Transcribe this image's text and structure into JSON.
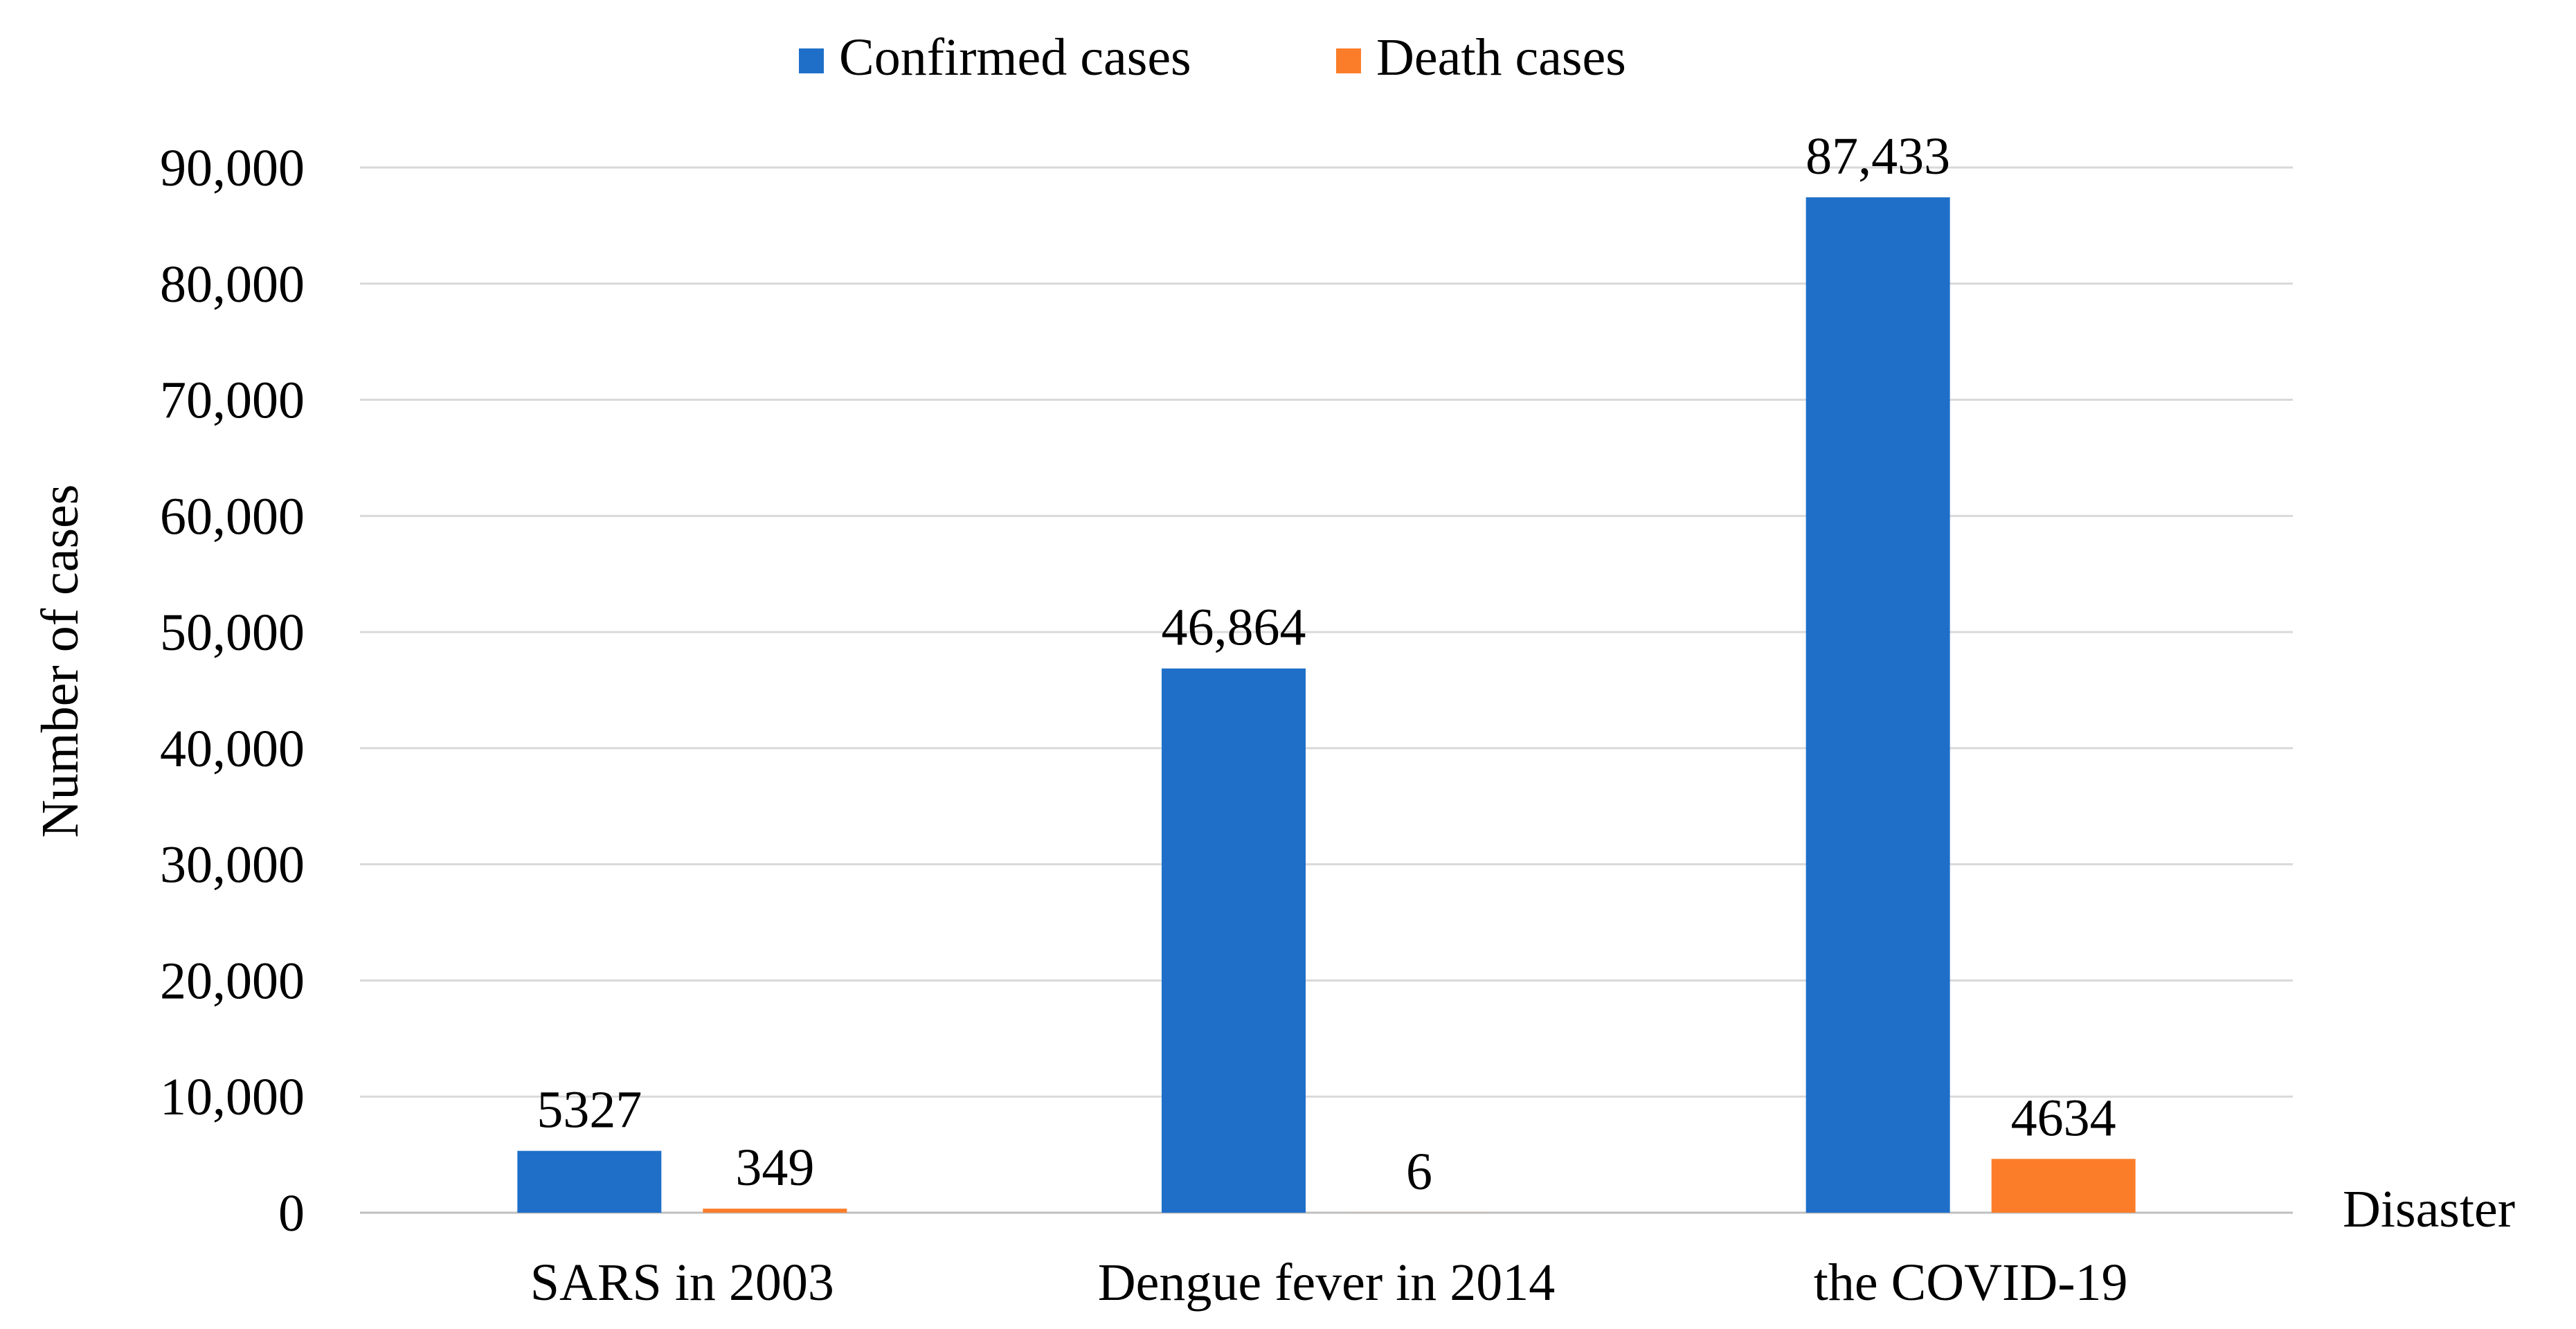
{
  "chart_data": {
    "type": "bar",
    "title": "",
    "xlabel": "Disaster",
    "ylabel": "Number of cases",
    "ylim": [
      0,
      90000
    ],
    "yticks": [
      0,
      10000,
      20000,
      30000,
      40000,
      50000,
      60000,
      70000,
      80000,
      90000
    ],
    "ytick_labels": [
      "0",
      "10,000",
      "20,000",
      "30,000",
      "40,000",
      "50,000",
      "60,000",
      "70,000",
      "80,000",
      "90,000"
    ],
    "grid": true,
    "legend_position": "top-center",
    "categories": [
      "SARS in 2003",
      "Dengue fever in 2014",
      "the COVID-19"
    ],
    "series": [
      {
        "name": "Confirmed cases",
        "color": "#1f6fc9",
        "values": [
          5327,
          46864,
          87433
        ],
        "labels": [
          "5327",
          "46,864",
          "87,433"
        ]
      },
      {
        "name": "Death cases",
        "color": "#fb7d2a",
        "values": [
          349,
          6,
          4634
        ],
        "labels": [
          "349",
          "6",
          "4634"
        ]
      }
    ]
  }
}
